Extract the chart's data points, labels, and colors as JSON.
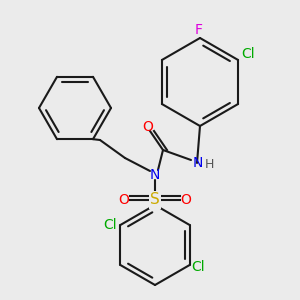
{
  "background_color": "#ebebeb",
  "bond_color": "#1a1a1a",
  "bond_width": 1.5,
  "figsize": [
    3.0,
    3.0
  ],
  "dpi": 100,
  "atoms": {
    "F": {
      "color": "#dd00dd"
    },
    "Cl": {
      "color": "#00aa00"
    },
    "N": {
      "color": "#0000ee"
    },
    "H": {
      "color": "#555555"
    },
    "O": {
      "color": "#ff0000"
    },
    "S": {
      "color": "#ccaa00"
    },
    "C": {
      "color": "#1a1a1a"
    }
  }
}
